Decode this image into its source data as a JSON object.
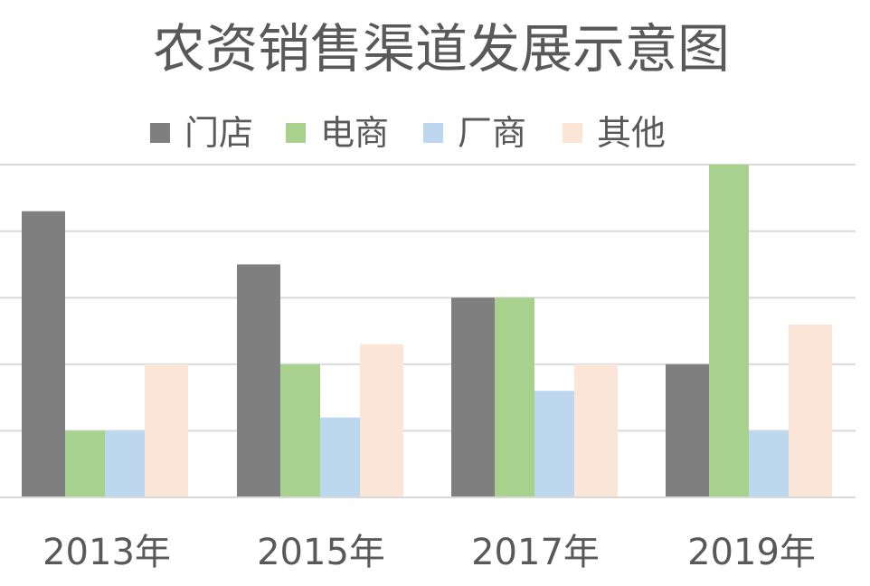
{
  "chart_data": {
    "type": "bar",
    "title": "农资销售渠道发展示意图",
    "categories": [
      "2013年",
      "2015年",
      "2017年",
      "2019年"
    ],
    "series": [
      {
        "name": "门店",
        "color": "#7f7f7f",
        "values": [
          4.3,
          3.5,
          3.0,
          2.0
        ]
      },
      {
        "name": "电商",
        "color": "#a9d18e",
        "values": [
          1.0,
          2.0,
          3.0,
          5.0
        ]
      },
      {
        "name": "厂商",
        "color": "#bdd7ee",
        "values": [
          1.0,
          1.2,
          1.6,
          1.0
        ]
      },
      {
        "name": "其他",
        "color": "#fbe5d6",
        "values": [
          2.0,
          2.3,
          2.0,
          2.6
        ]
      }
    ],
    "ylim": [
      0,
      5
    ],
    "y_gridlines": [
      1,
      2,
      3,
      4,
      5
    ],
    "grid": true,
    "legend_position": "top"
  }
}
